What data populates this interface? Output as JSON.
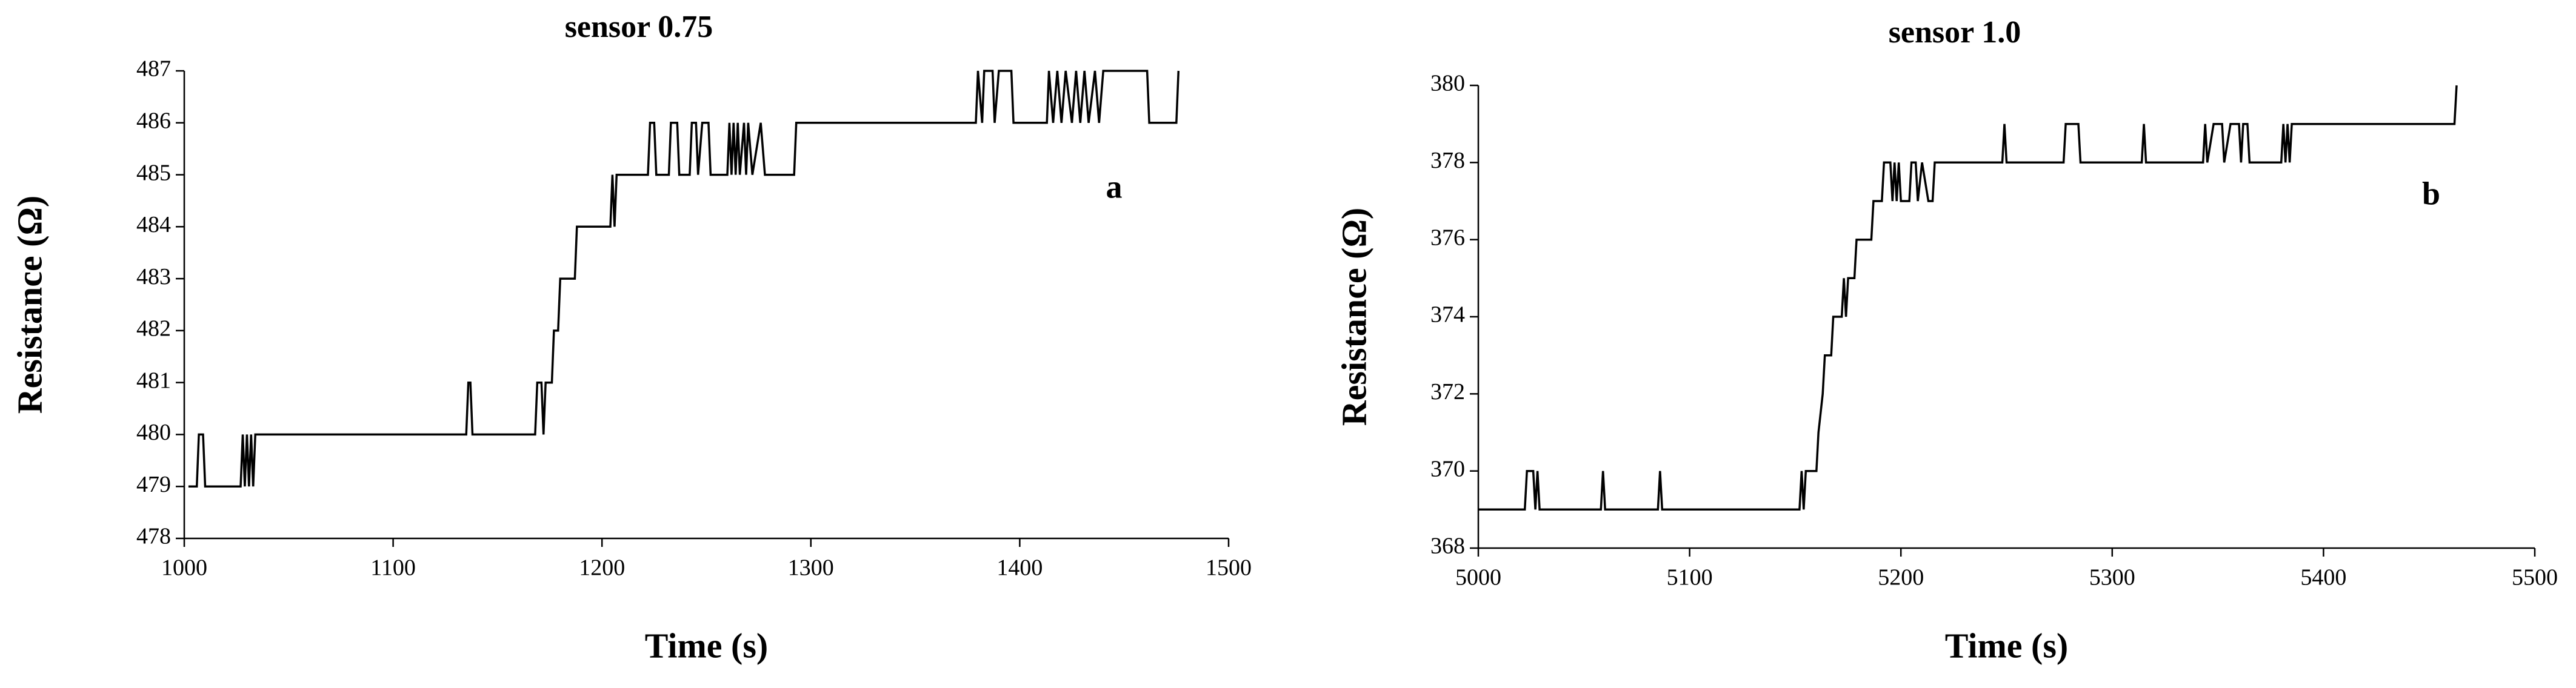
{
  "chart_data": [
    {
      "type": "line",
      "title": "sensor 0.75",
      "x_label": "Time (s)",
      "y_label": "Resistance (Ω)",
      "annotation": "a",
      "color": "#000000",
      "xlim": [
        1000,
        1500
      ],
      "xticks": [
        1000,
        1100,
        1200,
        1300,
        1400,
        1500
      ],
      "ylim": [
        478,
        487
      ],
      "yticks": [
        478,
        479,
        480,
        481,
        482,
        483,
        484,
        485,
        486,
        487
      ],
      "x": [
        1002,
        1006,
        1007,
        1009,
        1010,
        1027,
        1028,
        1029,
        1030,
        1031,
        1032,
        1033,
        1034,
        1135,
        1136,
        1137,
        1138,
        1168,
        1169,
        1171,
        1172,
        1173,
        1176,
        1177,
        1179,
        1180,
        1187,
        1188,
        1204,
        1205,
        1206,
        1207,
        1222,
        1223,
        1225,
        1226,
        1232,
        1233,
        1236,
        1237,
        1242,
        1243,
        1245,
        1246,
        1248,
        1251,
        1252,
        1260,
        1261,
        1262,
        1263,
        1264,
        1265,
        1266,
        1268,
        1269,
        1270,
        1272,
        1276,
        1278,
        1292,
        1293,
        1379,
        1380,
        1382,
        1383,
        1387,
        1388,
        1390,
        1396,
        1397,
        1413,
        1414,
        1416,
        1418,
        1420,
        1422,
        1425,
        1427,
        1429,
        1431,
        1433,
        1436,
        1438,
        1440,
        1461,
        1462,
        1475,
        1476
      ],
      "values": [
        479,
        479,
        480,
        480,
        479,
        479,
        480,
        479,
        480,
        479,
        480,
        479,
        480,
        480,
        481,
        481,
        480,
        480,
        481,
        481,
        480,
        481,
        481,
        482,
        482,
        483,
        483,
        484,
        484,
        485,
        484,
        485,
        485,
        486,
        486,
        485,
        485,
        486,
        486,
        485,
        485,
        486,
        486,
        485,
        486,
        486,
        485,
        485,
        486,
        485,
        486,
        485,
        486,
        485,
        486,
        485,
        486,
        485,
        486,
        485,
        485,
        486,
        486,
        487,
        486,
        487,
        487,
        486,
        487,
        487,
        486,
        486,
        487,
        486,
        487,
        486,
        487,
        486,
        487,
        486,
        487,
        486,
        487,
        486,
        487,
        487,
        486,
        486,
        487
      ]
    },
    {
      "type": "line",
      "title": "sensor 1.0",
      "x_label": "Time (s)",
      "y_label": "Resistance (Ω)",
      "annotation": "b",
      "color": "#000000",
      "xlim": [
        5000,
        5500
      ],
      "xticks": [
        5000,
        5100,
        5200,
        5300,
        5400,
        5500
      ],
      "ylim": [
        368,
        380
      ],
      "yticks": [
        368,
        370,
        372,
        374,
        376,
        378,
        380
      ],
      "x": [
        5000,
        5022,
        5023,
        5026,
        5027,
        5028,
        5029,
        5058,
        5059,
        5060,
        5085,
        5086,
        5087,
        5152,
        5153,
        5154,
        5155,
        5160,
        5161,
        5163,
        5164,
        5167,
        5168,
        5172,
        5173,
        5174,
        5175,
        5178,
        5179,
        5186,
        5187,
        5191,
        5192,
        5195,
        5196,
        5197,
        5198,
        5199,
        5200,
        5204,
        5205,
        5207,
        5208,
        5210,
        5213,
        5215,
        5216,
        5248,
        5249,
        5250,
        5277,
        5278,
        5284,
        5285,
        5314,
        5315,
        5316,
        5343,
        5344,
        5345,
        5348,
        5352,
        5353,
        5356,
        5360,
        5361,
        5362,
        5364,
        5365,
        5380,
        5381,
        5382,
        5383,
        5384,
        5385,
        5462,
        5463
      ],
      "values": [
        369,
        369,
        370,
        370,
        369,
        370,
        369,
        369,
        370,
        369,
        369,
        370,
        369,
        369,
        370,
        369,
        370,
        370,
        371,
        372,
        373,
        373,
        374,
        374,
        375,
        374,
        375,
        375,
        376,
        376,
        377,
        377,
        378,
        378,
        377,
        378,
        377,
        378,
        377,
        377,
        378,
        378,
        377,
        378,
        377,
        377,
        378,
        378,
        379,
        378,
        378,
        379,
        379,
        378,
        378,
        379,
        378,
        378,
        379,
        378,
        379,
        379,
        378,
        379,
        379,
        378,
        379,
        379,
        378,
        378,
        379,
        378,
        379,
        378,
        379,
        379,
        380
      ]
    }
  ]
}
